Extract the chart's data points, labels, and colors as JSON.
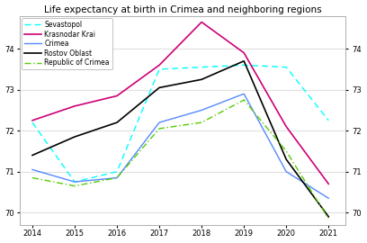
{
  "title": "Life expectancy at birth in Crimea and neighboring regions",
  "years": [
    2014,
    2015,
    2016,
    2017,
    2018,
    2019,
    2020,
    2021
  ],
  "series": {
    "Sevastopol": {
      "values": [
        72.2,
        70.75,
        71.0,
        73.5,
        73.55,
        73.6,
        73.55,
        72.25
      ],
      "color": "cyan",
      "linestyle": "--",
      "linewidth": 1.0
    },
    "Krasnodar Krai": {
      "values": [
        72.25,
        72.6,
        72.85,
        73.6,
        74.65,
        73.9,
        72.1,
        70.7
      ],
      "color": "#cc0077",
      "linestyle": "-",
      "linewidth": 1.2
    },
    "Crimea": {
      "values": [
        71.05,
        70.75,
        70.85,
        72.2,
        72.5,
        72.9,
        71.0,
        70.35
      ],
      "color": "#5588ff",
      "linestyle": "-",
      "linewidth": 1.0
    },
    "Rostov Oblast": {
      "values": [
        71.4,
        71.85,
        72.2,
        73.05,
        73.25,
        73.7,
        71.3,
        69.9
      ],
      "color": "black",
      "linestyle": "-",
      "linewidth": 1.2
    },
    "Republic of Crimea": {
      "values": [
        70.85,
        70.65,
        70.85,
        72.05,
        72.2,
        72.75,
        71.5,
        69.85
      ],
      "color": "#55cc00",
      "linestyle": "-.",
      "linewidth": 1.0
    }
  },
  "ylim": [
    69.7,
    74.8
  ],
  "yticks": [
    70,
    71,
    72,
    73,
    74
  ],
  "xlim": [
    2013.7,
    2021.4
  ],
  "background_color": "#ffffff",
  "grid_color": "#e0e0e0",
  "legend_order": [
    "Sevastopol",
    "Krasnodar Krai",
    "Crimea",
    "Rostov Oblast",
    "Republic of Crimea"
  ],
  "title_fontsize": 7.5,
  "tick_fontsize": 6.0,
  "legend_fontsize": 5.5
}
